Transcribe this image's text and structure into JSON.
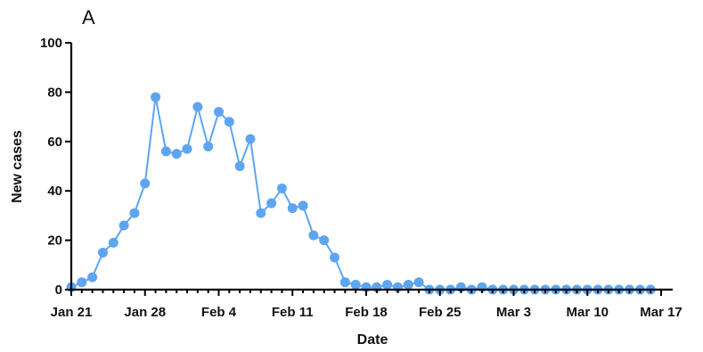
{
  "panel_label": "A",
  "chart_data": {
    "type": "line",
    "xlabel": "Date",
    "ylabel": "New cases",
    "ylim": [
      0,
      100
    ],
    "yticks": [
      0,
      20,
      40,
      60,
      80,
      100
    ],
    "x_start": "Jan 21",
    "x_end": "Mar 17",
    "xticks": [
      {
        "label": "Jan 21",
        "day": 0
      },
      {
        "label": "Jan 28",
        "day": 7
      },
      {
        "label": "Feb 4",
        "day": 14
      },
      {
        "label": "Feb 11",
        "day": 21
      },
      {
        "label": "Feb 18",
        "day": 28
      },
      {
        "label": "Feb 25",
        "day": 35
      },
      {
        "label": "Mar 3",
        "day": 42
      },
      {
        "label": "Mar 10",
        "day": 49
      },
      {
        "label": "Mar 17",
        "day": 56
      }
    ],
    "series": [
      {
        "color": "#5da5f0",
        "values": [
          1,
          3,
          5,
          15,
          19,
          26,
          31,
          43,
          78,
          56,
          55,
          57,
          74,
          58,
          72,
          68,
          50,
          61,
          31,
          35,
          41,
          33,
          34,
          22,
          20,
          13,
          3,
          2,
          1,
          1,
          2,
          1,
          2,
          3,
          0,
          0,
          0,
          1,
          0,
          1,
          0,
          0,
          0,
          0,
          0,
          0,
          0,
          0,
          0,
          0,
          0,
          0,
          0,
          0,
          0,
          0
        ]
      }
    ],
    "grid": false,
    "legend": "none"
  }
}
